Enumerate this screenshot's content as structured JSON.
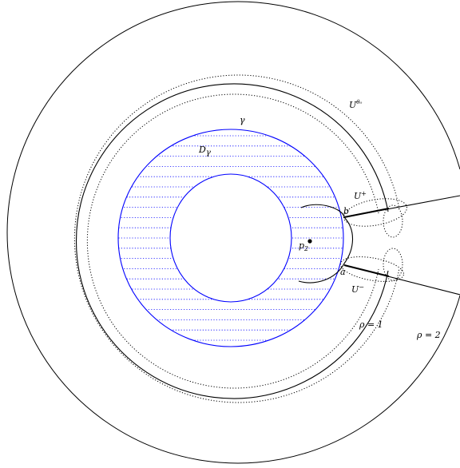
{
  "diagram": {
    "labels": {
      "gamma": "γ",
      "d_gamma": "D",
      "d_gamma_sub": "γ",
      "u_theta0": "U",
      "u_theta0_sup": "θ₀",
      "u_plus": "U",
      "u_plus_sup": "+",
      "u_minus": "U",
      "u_minus_sup": "−",
      "b": "b",
      "a": "a",
      "p2": "p",
      "p2_sub": "2",
      "rho1": "ρ = 1",
      "rho2": "ρ = 2"
    },
    "colors": {
      "gamma_curve": "#0000ff",
      "hatch": "#0000ff",
      "ink": "#000000"
    }
  }
}
